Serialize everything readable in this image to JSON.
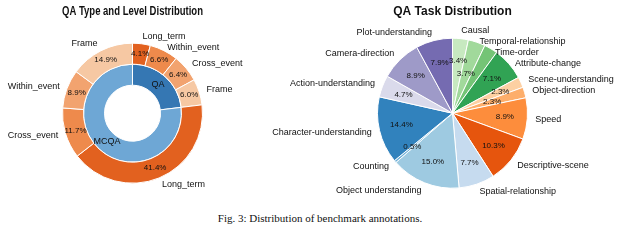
{
  "caption": "Fig. 3: Distribution of benchmark annotations.",
  "chart_data": [
    {
      "type": "doughnut",
      "title": "QA Type and Level Distribution",
      "data_labels": true,
      "inner": {
        "categories": [
          "QA",
          "MCQA"
        ],
        "values": [
          23.1,
          76.9
        ],
        "colors": [
          "#3577b3",
          "#6ea7d5"
        ]
      },
      "outer": {
        "categories": [
          "Long_term",
          "Within_event",
          "Cross_event",
          "Frame",
          "Long_term",
          "Cross_event",
          "Within_event",
          "Frame"
        ],
        "values": [
          4.1,
          6.6,
          6.4,
          6.0,
          41.4,
          11.7,
          8.9,
          14.9
        ],
        "value_labels": [
          "4.1%",
          "6.6%",
          "6.4%",
          "6.0%",
          "41.4%",
          "11.7%",
          "8.9%",
          "14.9%"
        ],
        "colors": [
          "#e2611f",
          "#ee8a4c",
          "#f2a36f",
          "#f6c8a3",
          "#e2611f",
          "#ee8a4c",
          "#f2a36f",
          "#f6c8a3"
        ]
      }
    },
    {
      "type": "pie",
      "title": "QA Task Distribution",
      "data_labels": true,
      "categories": [
        "Causal",
        "Temporal-relationship",
        "Time-order",
        "Attribute-change",
        "Scene-understanding",
        "Object-direction",
        "Speed",
        "Descriptive-scene",
        "Spatial-relationship",
        "Object understanding",
        "Counting",
        "Character-understanding",
        "Action-understanding",
        "Camera-direction",
        "Plot-understanding"
      ],
      "values": [
        3.4,
        3.7,
        2.9,
        7.1,
        2.3,
        2.3,
        8.9,
        10.3,
        7.7,
        15.0,
        0.5,
        14.4,
        4.7,
        8.9,
        7.9
      ],
      "value_labels": [
        "3.4%",
        "3.7%",
        null,
        "7.1%",
        "2.3%",
        "2.3%",
        "8.9%",
        "10.3%",
        "7.7%",
        "15.0%",
        "0.5%",
        "14.4%",
        "4.7%",
        "8.9%",
        "7.9%"
      ],
      "colors": [
        "#c7e9c0",
        "#a1d99b",
        "#74c476",
        "#31a354",
        "#fdd0a2",
        "#fdae6b",
        "#fd8d3c",
        "#e6550d",
        "#c6dbef",
        "#9ecae1",
        "#6baed6",
        "#3182bd",
        "#dadaeb",
        "#9e9ac8",
        "#756bb1"
      ]
    }
  ]
}
